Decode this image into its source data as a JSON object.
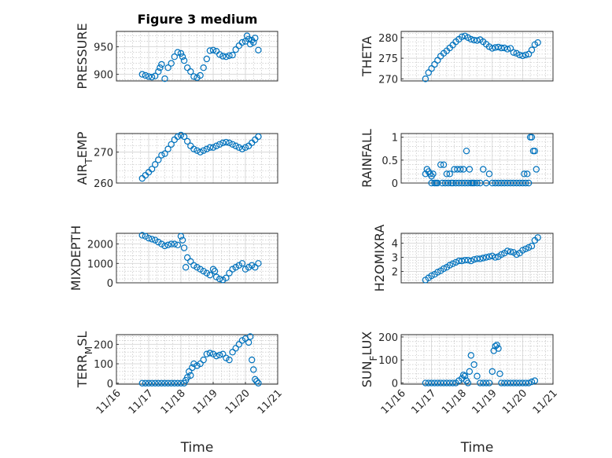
{
  "chart_data": [
    {
      "type": "scatter",
      "title": "Figure 3 medium",
      "ylabel": "PRESSURE",
      "ylim": [
        888,
        978
      ],
      "yticks": [
        900,
        950
      ],
      "ytick_labels": [
        "900",
        "950"
      ],
      "xticks": [],
      "xtick_labels": [],
      "xlabel": "",
      "series": [
        {
          "color": "#0072bd",
          "x": [
            16.8,
            16.9,
            17.0,
            17.1,
            17.2,
            17.3,
            17.35,
            17.4,
            17.5,
            17.6,
            17.7,
            17.8,
            17.9,
            18.0,
            18.05,
            18.1,
            18.2,
            18.3,
            18.4,
            18.5,
            18.6,
            18.7,
            18.8,
            18.9,
            19.0,
            19.1,
            19.2,
            19.3,
            19.4,
            19.5,
            19.6,
            19.7,
            19.8,
            19.9,
            20.0,
            20.05,
            20.1,
            20.15,
            20.2,
            20.25,
            20.3,
            20.4
          ],
          "y": [
            900,
            898,
            896,
            895,
            897,
            905,
            912,
            918,
            892,
            912,
            920,
            932,
            940,
            938,
            932,
            925,
            912,
            905,
            896,
            894,
            898,
            912,
            928,
            943,
            944,
            942,
            936,
            933,
            932,
            934,
            935,
            945,
            952,
            958,
            960,
            970,
            964,
            955,
            962,
            958,
            966,
            944
          ]
        }
      ]
    },
    {
      "type": "scatter",
      "ylabel": "THETA",
      "ylim": [
        269.5,
        281.5
      ],
      "yticks": [
        270,
        275,
        280
      ],
      "ytick_labels": [
        "270",
        "275",
        "280"
      ],
      "xticks": [],
      "xtick_labels": [],
      "xlabel": "",
      "series": [
        {
          "color": "#0072bd",
          "x": [
            16.8,
            16.9,
            17.0,
            17.1,
            17.2,
            17.3,
            17.4,
            17.5,
            17.6,
            17.7,
            17.8,
            17.9,
            18.0,
            18.1,
            18.2,
            18.3,
            18.4,
            18.5,
            18.6,
            18.7,
            18.8,
            18.9,
            19.0,
            19.1,
            19.2,
            19.3,
            19.4,
            19.5,
            19.6,
            19.7,
            19.8,
            19.9,
            20.0,
            20.1,
            20.2,
            20.3,
            20.4,
            20.5
          ],
          "y": [
            270.0,
            271.5,
            272.5,
            273.5,
            274.5,
            275.5,
            276.2,
            276.8,
            277.5,
            278.2,
            279.0,
            279.6,
            280.2,
            280.4,
            280.0,
            279.6,
            279.4,
            279.3,
            279.5,
            279.0,
            278.4,
            277.8,
            277.4,
            277.6,
            277.7,
            277.5,
            277.5,
            277.2,
            277.4,
            276.4,
            276.2,
            275.8,
            275.6,
            275.8,
            276.0,
            277.0,
            278.3,
            278.8
          ]
        }
      ]
    },
    {
      "type": "scatter",
      "ylabel": "AIR_TEMP",
      "ylim": [
        260,
        276
      ],
      "yticks": [
        260,
        270
      ],
      "ytick_labels": [
        "260",
        "270"
      ],
      "xticks": [],
      "xtick_labels": [],
      "xlabel": "",
      "series": [
        {
          "color": "#0072bd",
          "x": [
            16.8,
            16.9,
            17.0,
            17.1,
            17.2,
            17.3,
            17.4,
            17.5,
            17.6,
            17.7,
            17.8,
            17.9,
            18.0,
            18.1,
            18.2,
            18.3,
            18.4,
            18.5,
            18.6,
            18.7,
            18.8,
            18.9,
            19.0,
            19.1,
            19.2,
            19.3,
            19.4,
            19.5,
            19.6,
            19.7,
            19.8,
            19.9,
            20.0,
            20.1,
            20.2,
            20.3,
            20.4
          ],
          "y": [
            261.5,
            262.5,
            263.5,
            264.5,
            266.0,
            267.5,
            269.0,
            269.5,
            271.0,
            272.5,
            274.0,
            275.0,
            275.5,
            275.0,
            273.5,
            272.0,
            271.0,
            270.5,
            270.0,
            270.5,
            271.0,
            271.5,
            271.5,
            272.0,
            272.5,
            273.0,
            273.2,
            273.0,
            272.5,
            272.0,
            271.5,
            271.0,
            271.5,
            272.0,
            273.0,
            274.0,
            275.0
          ]
        }
      ]
    },
    {
      "type": "scatter",
      "ylabel": "RAINFALL",
      "ylim": [
        0,
        1.08
      ],
      "yticks": [
        0,
        0.5,
        1
      ],
      "ytick_labels": [
        "0",
        "0.5",
        "1"
      ],
      "xticks": [],
      "xtick_labels": [],
      "xlabel": "",
      "series": [
        {
          "color": "#0072bd",
          "x": [
            16.8,
            16.85,
            16.9,
            16.95,
            17.0,
            17.0,
            17.05,
            17.1,
            17.15,
            17.2,
            17.3,
            17.35,
            17.4,
            17.45,
            17.5,
            17.55,
            17.6,
            17.65,
            17.7,
            17.75,
            17.8,
            17.85,
            17.9,
            17.95,
            18.0,
            18.05,
            18.1,
            18.15,
            18.2,
            18.25,
            18.3,
            18.35,
            18.4,
            18.5,
            18.6,
            18.7,
            18.8,
            18.9,
            19.0,
            19.1,
            19.2,
            19.3,
            19.4,
            19.5,
            19.6,
            19.7,
            19.8,
            19.9,
            20.0,
            20.05,
            20.1,
            20.15,
            20.2,
            20.25,
            20.3,
            20.35,
            20.4,
            20.45
          ],
          "y": [
            0.2,
            0.3,
            0.25,
            0.2,
            0.15,
            0.0,
            0.2,
            0.0,
            0.0,
            0.0,
            0.4,
            0.0,
            0.4,
            0.0,
            0.2,
            0.0,
            0.2,
            0.0,
            0.0,
            0.3,
            0.0,
            0.3,
            0.0,
            0.3,
            0.0,
            0.3,
            0.0,
            0.7,
            0.0,
            0.3,
            0.0,
            0.0,
            0.0,
            0.0,
            0.0,
            0.3,
            0.0,
            0.2,
            0.0,
            0.0,
            0.0,
            0.0,
            0.0,
            0.0,
            0.0,
            0.0,
            0.0,
            0.0,
            0.0,
            0.2,
            0.0,
            0.2,
            0.0,
            1.0,
            1.0,
            0.7,
            0.7,
            0.3
          ]
        }
      ]
    },
    {
      "type": "scatter",
      "ylabel": "MIXDEPTH",
      "ylim": [
        0,
        2550
      ],
      "yticks": [
        0,
        1000,
        2000
      ],
      "ytick_labels": [
        "0",
        "1000",
        "2000"
      ],
      "xticks": [],
      "xtick_labels": [],
      "xlabel": "",
      "series": [
        {
          "color": "#0072bd",
          "x": [
            16.8,
            16.9,
            17.0,
            17.1,
            17.2,
            17.3,
            17.4,
            17.5,
            17.6,
            17.7,
            17.8,
            17.9,
            18.0,
            18.05,
            18.1,
            18.15,
            18.2,
            18.3,
            18.4,
            18.5,
            18.6,
            18.7,
            18.8,
            18.9,
            19.0,
            19.05,
            19.1,
            19.2,
            19.3,
            19.4,
            19.5,
            19.6,
            19.7,
            19.8,
            19.9,
            20.0,
            20.1,
            20.2,
            20.3,
            20.4
          ],
          "y": [
            2450,
            2400,
            2300,
            2250,
            2200,
            2100,
            2000,
            1900,
            1950,
            2000,
            2000,
            1950,
            2400,
            2200,
            1800,
            800,
            1300,
            1100,
            900,
            800,
            700,
            600,
            500,
            400,
            700,
            600,
            300,
            200,
            150,
            250,
            500,
            700,
            800,
            900,
            1000,
            700,
            800,
            900,
            800,
            1000
          ]
        }
      ]
    },
    {
      "type": "scatter",
      "ylabel": "H2OMIXRA",
      "ylim": [
        1.2,
        4.7
      ],
      "yticks": [
        2,
        3,
        4
      ],
      "ytick_labels": [
        "2",
        "3",
        "4"
      ],
      "xticks": [],
      "xtick_labels": [],
      "xlabel": "",
      "series": [
        {
          "color": "#0072bd",
          "x": [
            16.8,
            16.9,
            17.0,
            17.1,
            17.2,
            17.3,
            17.4,
            17.5,
            17.6,
            17.7,
            17.8,
            17.9,
            18.0,
            18.1,
            18.2,
            18.3,
            18.4,
            18.5,
            18.6,
            18.7,
            18.8,
            18.9,
            19.0,
            19.1,
            19.2,
            19.3,
            19.4,
            19.5,
            19.6,
            19.7,
            19.8,
            19.9,
            20.0,
            20.1,
            20.2,
            20.3,
            20.4,
            20.5
          ],
          "y": [
            1.4,
            1.55,
            1.7,
            1.8,
            1.95,
            2.05,
            2.2,
            2.3,
            2.45,
            2.55,
            2.65,
            2.75,
            2.75,
            2.8,
            2.8,
            2.75,
            2.85,
            2.9,
            2.9,
            2.95,
            3.0,
            3.05,
            3.1,
            3.0,
            3.05,
            3.2,
            3.3,
            3.45,
            3.4,
            3.35,
            3.2,
            3.3,
            3.5,
            3.6,
            3.7,
            3.8,
            4.2,
            4.4
          ]
        }
      ]
    },
    {
      "type": "scatter",
      "ylabel": "TERR_MSL",
      "ylim": [
        -5,
        250
      ],
      "yticks": [
        0,
        100,
        200
      ],
      "ytick_labels": [
        "0",
        "100",
        "200"
      ],
      "xticks": [
        16,
        17,
        18,
        19,
        20,
        21
      ],
      "xtick_labels": [
        "11/16",
        "11/17",
        "11/18",
        "11/19",
        "11/20",
        "11/21"
      ],
      "xlabel": "Time",
      "series": [
        {
          "color": "#0072bd",
          "x": [
            16.8,
            16.9,
            17.0,
            17.1,
            17.2,
            17.3,
            17.4,
            17.5,
            17.6,
            17.7,
            17.8,
            17.9,
            18.0,
            18.1,
            18.15,
            18.2,
            18.25,
            18.3,
            18.35,
            18.4,
            18.5,
            18.6,
            18.7,
            18.8,
            18.9,
            19.0,
            19.1,
            19.2,
            19.3,
            19.4,
            19.5,
            19.6,
            19.7,
            19.8,
            19.9,
            20.0,
            20.1,
            20.15,
            20.2,
            20.25,
            20.3,
            20.35,
            20.4
          ],
          "y": [
            0,
            0,
            0,
            0,
            0,
            0,
            0,
            0,
            0,
            0,
            0,
            0,
            0,
            0,
            15,
            30,
            60,
            40,
            80,
            100,
            90,
            100,
            120,
            150,
            155,
            150,
            140,
            145,
            150,
            130,
            120,
            160,
            180,
            200,
            220,
            230,
            210,
            240,
            120,
            70,
            20,
            10,
            0
          ]
        }
      ]
    },
    {
      "type": "scatter",
      "ylabel": "SUN_FLUX",
      "ylim": [
        -5,
        210
      ],
      "yticks": [
        0,
        100,
        200
      ],
      "ytick_labels": [
        "0",
        "100",
        "200"
      ],
      "xticks": [
        16,
        17,
        18,
        19,
        20,
        21
      ],
      "xtick_labels": [
        "11/16",
        "11/17",
        "11/18",
        "11/19",
        "11/20",
        "11/21"
      ],
      "xlabel": "Time",
      "series": [
        {
          "color": "#0072bd",
          "x": [
            16.8,
            16.9,
            17.0,
            17.1,
            17.2,
            17.3,
            17.4,
            17.5,
            17.6,
            17.7,
            17.8,
            17.9,
            18.0,
            18.05,
            18.1,
            18.15,
            18.2,
            18.25,
            18.3,
            18.4,
            18.5,
            18.6,
            18.7,
            18.8,
            18.9,
            19.0,
            19.05,
            19.1,
            19.15,
            19.2,
            19.25,
            19.3,
            19.4,
            19.5,
            19.6,
            19.7,
            19.8,
            19.9,
            20.0,
            20.1,
            20.2,
            20.3,
            20.4
          ],
          "y": [
            0,
            0,
            0,
            0,
            0,
            0,
            0,
            0,
            0,
            0,
            0,
            10,
            20,
            35,
            30,
            10,
            0,
            50,
            120,
            80,
            30,
            0,
            0,
            0,
            0,
            50,
            140,
            160,
            165,
            150,
            40,
            0,
            0,
            0,
            0,
            0,
            0,
            0,
            0,
            0,
            0,
            5,
            10
          ]
        }
      ]
    }
  ]
}
